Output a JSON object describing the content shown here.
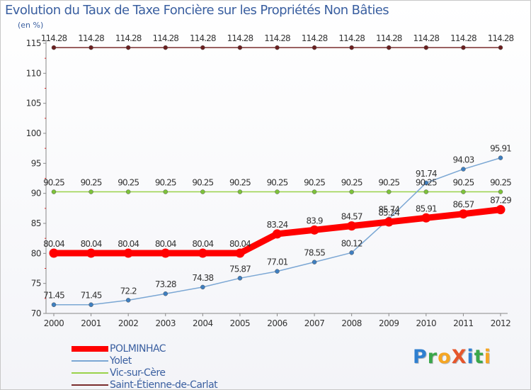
{
  "title": "Evolution du Taux de Taxe Foncière sur les Propriétés Non Bâties",
  "unit_label": "(en %)",
  "logo": {
    "text": "ProXiti",
    "letters": [
      {
        "char": "P",
        "color": "#2e7fd0"
      },
      {
        "char": "r",
        "color": "#3aa74a"
      },
      {
        "char": "o",
        "color": "#f5a623"
      },
      {
        "char": "X",
        "color": "#e5562c"
      },
      {
        "char": "i",
        "color": "#2e7fd0"
      },
      {
        "char": "t",
        "color": "#3aa74a"
      },
      {
        "char": "i",
        "color": "#f5a623"
      }
    ]
  },
  "chart_data": {
    "type": "line",
    "title": "Evolution du Taux de Taxe Foncière sur les Propriétés Non Bâties",
    "ylabel": "(en %)",
    "xlabel": "",
    "categories": [
      "2000",
      "2001",
      "2002",
      "2003",
      "2004",
      "2005",
      "2006",
      "2007",
      "2008",
      "2009",
      "2010",
      "2011",
      "2012"
    ],
    "ylim": [
      70,
      115
    ],
    "yticks": [
      70,
      75,
      80,
      85,
      90,
      95,
      100,
      105,
      110,
      115
    ],
    "grid": false,
    "legend_position": "bottom-left",
    "series": [
      {
        "name": "POLMINHAC",
        "color": "#ff0000",
        "emphasis": true,
        "values": [
          80.04,
          80.04,
          80.04,
          80.04,
          80.04,
          80.04,
          83.24,
          83.9,
          84.57,
          85.24,
          85.91,
          86.57,
          87.29
        ],
        "labels": [
          "80.04",
          "80.04",
          "80.04",
          "80.04",
          "80.04",
          "80.04",
          "83.24",
          "83.9",
          "84.57",
          "85.24",
          "85.91",
          "86.57",
          "87.29"
        ]
      },
      {
        "name": "Yolet",
        "color": "#7ba7d4",
        "marker": "#3f7fc0",
        "values": [
          71.45,
          71.45,
          72.2,
          73.28,
          74.38,
          75.87,
          77.01,
          78.55,
          80.12,
          85.74,
          91.74,
          94.03,
          95.91
        ],
        "labels": [
          "71.45",
          "71.45",
          "72.2",
          "73.28",
          "74.38",
          "75.87",
          "77.01",
          "78.55",
          "80.12",
          "85.74",
          "91.74",
          "94.03",
          "95.91"
        ]
      },
      {
        "name": "Vic-sur-Cère",
        "color": "#9ad24a",
        "marker": "#7cc23a",
        "values": [
          90.25,
          90.25,
          90.25,
          90.25,
          90.25,
          90.25,
          90.25,
          90.25,
          90.25,
          90.25,
          90.25,
          90.25,
          90.25
        ],
        "labels": [
          "90.25",
          "90.25",
          "90.25",
          "90.25",
          "90.25",
          "90.25",
          "90.25",
          "90.25",
          "90.25",
          "90.25",
          "90.25",
          "90.25",
          "90.25"
        ]
      },
      {
        "name": "Saint-Étienne-de-Carlat",
        "color": "#7a2d2d",
        "marker": "#6b1f1f",
        "values": [
          114.28,
          114.28,
          114.28,
          114.28,
          114.28,
          114.28,
          114.28,
          114.28,
          114.28,
          114.28,
          114.28,
          114.28,
          114.28
        ],
        "labels": [
          "114.28",
          "114.28",
          "114.28",
          "114.28",
          "114.28",
          "114.28",
          "114.28",
          "114.28",
          "114.28",
          "114.28",
          "114.28",
          "114.28",
          "114.28"
        ]
      }
    ]
  }
}
